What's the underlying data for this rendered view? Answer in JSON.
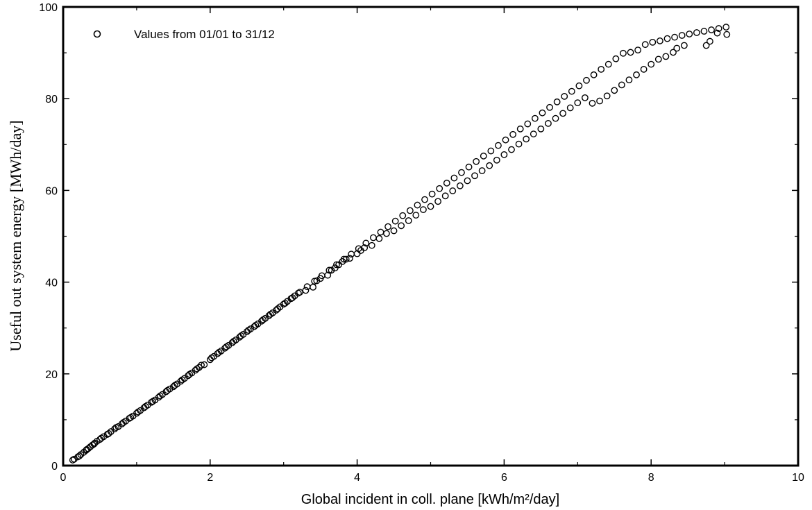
{
  "chart_data": {
    "type": "scatter",
    "xlabel": "Global incident in coll. plane [kWh/m²/day]",
    "ylabel": "Useful out system energy [MWh/day]",
    "xlim": [
      0,
      10
    ],
    "ylim": [
      0,
      100
    ],
    "x_ticks": [
      "0",
      "2",
      "4",
      "6",
      "8",
      "10"
    ],
    "y_ticks": [
      "0",
      "20",
      "40",
      "60",
      "80",
      "100"
    ],
    "grid": false,
    "legend_position": "top-left",
    "series": [
      {
        "name": "Values from 01/01 to 31/12",
        "marker": "open-circle",
        "points": [
          [
            0.13,
            1.2
          ],
          [
            0.15,
            1.4
          ],
          [
            0.2,
            1.9
          ],
          [
            0.24,
            2.4
          ],
          [
            0.28,
            2.9
          ],
          [
            0.31,
            3.3
          ],
          [
            0.34,
            3.7
          ],
          [
            0.37,
            4.1
          ],
          [
            0.4,
            4.5
          ],
          [
            0.43,
            4.9
          ],
          [
            0.46,
            5.3
          ],
          [
            0.5,
            5.7
          ],
          [
            0.55,
            6.3
          ],
          [
            0.6,
            6.8
          ],
          [
            0.65,
            7.4
          ],
          [
            0.7,
            8.0
          ],
          [
            0.75,
            8.5
          ],
          [
            0.8,
            9.1
          ],
          [
            0.85,
            9.7
          ],
          [
            0.9,
            10.3
          ],
          [
            0.95,
            10.8
          ],
          [
            1.0,
            11.4
          ],
          [
            1.05,
            12.0
          ],
          [
            1.1,
            12.6
          ],
          [
            1.15,
            13.2
          ],
          [
            1.2,
            13.8
          ],
          [
            1.25,
            14.3
          ],
          [
            1.3,
            14.9
          ],
          [
            1.35,
            15.5
          ],
          [
            1.4,
            16.1
          ],
          [
            1.45,
            16.7
          ],
          [
            1.5,
            17.2
          ],
          [
            1.55,
            17.8
          ],
          [
            1.6,
            18.4
          ],
          [
            1.65,
            19.0
          ],
          [
            1.7,
            19.6
          ],
          [
            1.75,
            20.2
          ],
          [
            1.8,
            20.8
          ],
          [
            1.85,
            21.4
          ],
          [
            1.88,
            21.9
          ],
          [
            1.92,
            22.0
          ],
          [
            2.0,
            23.1
          ],
          [
            2.05,
            23.8
          ],
          [
            2.1,
            24.4
          ],
          [
            2.15,
            25.0
          ],
          [
            2.2,
            25.6
          ],
          [
            2.25,
            26.2
          ],
          [
            2.3,
            26.8
          ],
          [
            2.35,
            27.4
          ],
          [
            2.4,
            28.0
          ],
          [
            2.45,
            28.6
          ],
          [
            2.5,
            29.2
          ],
          [
            2.55,
            29.8
          ],
          [
            2.6,
            30.3
          ],
          [
            2.65,
            30.9
          ],
          [
            2.7,
            31.5
          ],
          [
            2.75,
            32.1
          ],
          [
            2.8,
            32.7
          ],
          [
            2.85,
            33.3
          ],
          [
            2.9,
            33.9
          ],
          [
            2.95,
            34.6
          ],
          [
            3.0,
            35.2
          ],
          [
            3.05,
            35.8
          ],
          [
            3.1,
            36.4
          ],
          [
            3.15,
            37.0
          ],
          [
            3.2,
            37.6
          ],
          [
            3.3,
            38.2
          ],
          [
            3.4,
            38.9
          ],
          [
            3.45,
            40.3
          ],
          [
            3.5,
            40.8
          ],
          [
            3.6,
            41.5
          ],
          [
            3.65,
            42.6
          ],
          [
            3.7,
            43.1
          ],
          [
            3.75,
            43.8
          ],
          [
            3.8,
            44.5
          ],
          [
            3.85,
            45.0
          ],
          [
            3.9,
            45.2
          ],
          [
            4.0,
            46.2
          ],
          [
            4.05,
            46.9
          ],
          [
            4.1,
            47.5
          ],
          [
            4.2,
            48.0
          ],
          [
            4.3,
            49.5
          ],
          [
            4.4,
            50.6
          ],
          [
            4.5,
            51.2
          ],
          [
            4.6,
            52.3
          ],
          [
            4.7,
            53.4
          ],
          [
            4.8,
            54.6
          ],
          [
            4.9,
            55.8
          ],
          [
            5.0,
            56.5
          ],
          [
            5.1,
            57.6
          ],
          [
            5.2,
            58.8
          ],
          [
            5.3,
            59.9
          ],
          [
            5.4,
            61.0
          ],
          [
            5.5,
            62.1
          ],
          [
            5.6,
            63.2
          ],
          [
            5.7,
            64.3
          ],
          [
            5.8,
            65.4
          ],
          [
            5.9,
            66.6
          ],
          [
            6.0,
            67.8
          ],
          [
            6.1,
            68.9
          ],
          [
            6.2,
            70.1
          ],
          [
            6.3,
            71.2
          ],
          [
            6.4,
            72.3
          ],
          [
            6.5,
            73.4
          ],
          [
            6.6,
            74.6
          ],
          [
            6.7,
            75.7
          ],
          [
            6.8,
            76.8
          ],
          [
            6.9,
            78.0
          ],
          [
            7.0,
            79.1
          ],
          [
            7.1,
            80.2
          ],
          [
            7.2,
            79.0
          ],
          [
            7.3,
            79.5
          ],
          [
            7.4,
            80.6
          ],
          [
            7.5,
            81.8
          ],
          [
            7.6,
            83.0
          ],
          [
            7.7,
            84.1
          ],
          [
            7.8,
            85.2
          ],
          [
            7.9,
            86.4
          ],
          [
            8.0,
            87.5
          ],
          [
            8.1,
            88.6
          ],
          [
            8.2,
            89.2
          ],
          [
            8.3,
            90.1
          ],
          [
            8.35,
            91.0
          ],
          [
            8.45,
            91.6
          ],
          [
            8.75,
            91.6
          ],
          [
            8.8,
            92.5
          ],
          [
            8.9,
            94.3
          ],
          [
            9.03,
            94.0
          ],
          [
            0.22,
            2.1
          ],
          [
            0.32,
            3.5
          ],
          [
            0.42,
            4.7
          ],
          [
            0.52,
            6.0
          ],
          [
            0.62,
            7.0
          ],
          [
            0.72,
            8.3
          ],
          [
            0.82,
            9.4
          ],
          [
            0.92,
            10.5
          ],
          [
            1.02,
            11.7
          ],
          [
            1.12,
            12.9
          ],
          [
            1.22,
            14.0
          ],
          [
            1.32,
            15.2
          ],
          [
            1.42,
            16.4
          ],
          [
            1.52,
            17.5
          ],
          [
            1.62,
            18.7
          ],
          [
            1.72,
            19.9
          ],
          [
            1.82,
            21.1
          ],
          [
            2.02,
            23.5
          ],
          [
            2.12,
            24.7
          ],
          [
            2.22,
            25.9
          ],
          [
            2.32,
            27.1
          ],
          [
            2.42,
            28.3
          ],
          [
            2.52,
            29.5
          ],
          [
            2.62,
            30.6
          ],
          [
            2.72,
            31.8
          ],
          [
            2.82,
            33.0
          ],
          [
            2.92,
            34.2
          ],
          [
            3.02,
            35.4
          ],
          [
            3.12,
            36.6
          ],
          [
            3.22,
            37.8
          ],
          [
            3.32,
            39.0
          ],
          [
            3.42,
            40.2
          ],
          [
            3.52,
            41.4
          ],
          [
            3.62,
            42.6
          ],
          [
            3.72,
            43.8
          ],
          [
            3.82,
            45.0
          ],
          [
            3.92,
            46.1
          ],
          [
            4.02,
            47.3
          ],
          [
            4.12,
            48.5
          ],
          [
            4.22,
            49.7
          ],
          [
            4.32,
            50.9
          ],
          [
            4.42,
            52.1
          ],
          [
            4.52,
            53.3
          ],
          [
            4.62,
            54.5
          ],
          [
            4.72,
            55.6
          ],
          [
            4.82,
            56.8
          ],
          [
            4.92,
            58.0
          ],
          [
            5.02,
            59.2
          ],
          [
            5.12,
            60.4
          ],
          [
            5.22,
            61.6
          ],
          [
            5.32,
            62.7
          ],
          [
            5.42,
            63.9
          ],
          [
            5.52,
            65.1
          ],
          [
            5.62,
            66.3
          ],
          [
            5.72,
            67.5
          ],
          [
            5.82,
            68.6
          ],
          [
            5.92,
            69.8
          ],
          [
            6.02,
            71.0
          ],
          [
            6.12,
            72.2
          ],
          [
            6.22,
            73.4
          ],
          [
            6.32,
            74.5
          ],
          [
            6.42,
            75.7
          ],
          [
            6.52,
            76.9
          ],
          [
            6.62,
            78.1
          ],
          [
            6.72,
            79.3
          ],
          [
            6.82,
            80.5
          ],
          [
            6.92,
            81.6
          ],
          [
            7.02,
            82.8
          ],
          [
            7.12,
            84.0
          ],
          [
            7.22,
            85.2
          ],
          [
            7.32,
            86.4
          ],
          [
            7.42,
            87.5
          ],
          [
            7.52,
            88.7
          ],
          [
            7.62,
            89.9
          ],
          [
            7.72,
            90.1
          ],
          [
            7.82,
            90.6
          ],
          [
            7.92,
            91.8
          ],
          [
            8.02,
            92.3
          ],
          [
            8.12,
            92.6
          ],
          [
            8.22,
            93.1
          ],
          [
            8.32,
            93.4
          ],
          [
            8.42,
            93.8
          ],
          [
            8.52,
            94.1
          ],
          [
            8.62,
            94.4
          ],
          [
            8.72,
            94.7
          ],
          [
            8.82,
            95.0
          ],
          [
            8.92,
            95.3
          ],
          [
            9.02,
            95.6
          ]
        ]
      }
    ]
  }
}
